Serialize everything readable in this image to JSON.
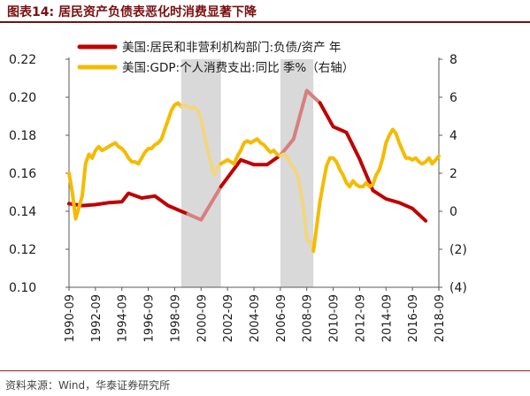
{
  "figure": {
    "title": "图表14:  居民资产负债表恶化时消费显著下降",
    "source": "资料来源：Wind，华泰证券研究所"
  },
  "colors": {
    "series_debt": "#c00000",
    "series_debt_shaded": "#d77f7f",
    "series_consumption": "#f5bb00",
    "series_consumption_shaded": "#f2d680",
    "recession_band": "#d9d9d9",
    "title": "#7a0f0f"
  },
  "chart_data": {
    "type": "line",
    "title": "",
    "xlabel": "",
    "ylabel": "",
    "legend_position": "top",
    "grid": false,
    "x_range": [
      "1990-09",
      "2018-09"
    ],
    "x_tick_labels": [
      "1990-09",
      "1992-09",
      "1994-09",
      "1996-09",
      "1998-09",
      "2000-09",
      "2002-09",
      "2004-09",
      "2006-09",
      "2008-09",
      "2010-09",
      "2012-09",
      "2014-09",
      "2016-09",
      "2018-09"
    ],
    "y_left": {
      "min": 0.1,
      "max": 0.22,
      "tick_labels": [
        "0.10",
        "0.12",
        "0.14",
        "0.16",
        "0.18",
        "0.20",
        "0.22"
      ]
    },
    "y_right": {
      "min": -4,
      "max": 8,
      "tick_labels": [
        "(4)",
        "(2)",
        "0",
        "2",
        "4",
        "6",
        "8"
      ]
    },
    "shaded_periods": [
      {
        "start": "1999-03",
        "end": "2002-03"
      },
      {
        "start": "2006-09",
        "end": "2009-03"
      }
    ],
    "series": [
      {
        "name": "美国:居民和非营利机构部门:负债/资产  年",
        "axis": "left",
        "points": [
          [
            "1990-09",
            0.144
          ],
          [
            "1991-09",
            0.143
          ],
          [
            "1992-09",
            0.1435
          ],
          [
            "1993-09",
            0.1445
          ],
          [
            "1994-09",
            0.145
          ],
          [
            "1995-03",
            0.1495
          ],
          [
            "1996-03",
            0.147
          ],
          [
            "1997-03",
            0.148
          ],
          [
            "1998-03",
            0.143
          ],
          [
            "1999-09",
            0.1385
          ],
          [
            "2000-09",
            0.1355
          ],
          [
            "2002-03",
            0.153
          ],
          [
            "2003-09",
            0.167
          ],
          [
            "2004-09",
            0.1645
          ],
          [
            "2005-09",
            0.1645
          ],
          [
            "2006-09",
            0.1695
          ],
          [
            "2007-09",
            0.178
          ],
          [
            "2008-09",
            0.2035
          ],
          [
            "2009-09",
            0.197
          ],
          [
            "2010-09",
            0.1845
          ],
          [
            "2011-09",
            0.1815
          ],
          [
            "2012-09",
            0.1675
          ],
          [
            "2013-09",
            0.151
          ],
          [
            "2014-09",
            0.1465
          ],
          [
            "2015-09",
            0.1445
          ],
          [
            "2016-09",
            0.1415
          ],
          [
            "2017-09",
            0.135
          ]
        ]
      },
      {
        "name": "美国:GDP:个人消费支出:同比  季%（右轴）",
        "axis": "right",
        "points": [
          [
            "1990-09",
            2.0
          ],
          [
            "1990-12",
            1.0
          ],
          [
            "1991-03",
            -0.4
          ],
          [
            "1991-06",
            0.2
          ],
          [
            "1991-09",
            0.8
          ],
          [
            "1991-12",
            2.5
          ],
          [
            "1992-03",
            3.0
          ],
          [
            "1992-06",
            2.8
          ],
          [
            "1992-09",
            3.2
          ],
          [
            "1992-12",
            3.4
          ],
          [
            "1993-03",
            3.2
          ],
          [
            "1993-06",
            3.3
          ],
          [
            "1993-09",
            3.4
          ],
          [
            "1993-12",
            3.5
          ],
          [
            "1994-03",
            3.6
          ],
          [
            "1994-06",
            3.4
          ],
          [
            "1994-09",
            3.3
          ],
          [
            "1994-12",
            3.1
          ],
          [
            "1995-03",
            2.8
          ],
          [
            "1995-06",
            2.6
          ],
          [
            "1995-09",
            2.6
          ],
          [
            "1995-12",
            2.5
          ],
          [
            "1996-03",
            2.8
          ],
          [
            "1996-06",
            3.1
          ],
          [
            "1996-09",
            3.3
          ],
          [
            "1996-12",
            3.3
          ],
          [
            "1997-03",
            3.5
          ],
          [
            "1997-06",
            3.6
          ],
          [
            "1997-09",
            3.8
          ],
          [
            "1997-12",
            4.3
          ],
          [
            "1998-03",
            4.8
          ],
          [
            "1998-06",
            5.3
          ],
          [
            "1998-09",
            5.6
          ],
          [
            "1998-12",
            5.7
          ],
          [
            "1999-03",
            5.5
          ],
          [
            "1999-06",
            5.6
          ],
          [
            "1999-09",
            5.5
          ],
          [
            "1999-12",
            5.4
          ],
          [
            "2000-03",
            5.5
          ],
          [
            "2000-06",
            5.3
          ],
          [
            "2000-09",
            4.8
          ],
          [
            "2000-12",
            4.0
          ],
          [
            "2001-03",
            3.2
          ],
          [
            "2001-06",
            2.5
          ],
          [
            "2001-09",
            1.9
          ],
          [
            "2001-12",
            2.3
          ],
          [
            "2002-03",
            2.5
          ],
          [
            "2002-06",
            2.6
          ],
          [
            "2002-09",
            2.7
          ],
          [
            "2002-12",
            2.6
          ],
          [
            "2003-03",
            2.5
          ],
          [
            "2003-06",
            2.9
          ],
          [
            "2003-09",
            3.2
          ],
          [
            "2003-12",
            3.6
          ],
          [
            "2004-03",
            3.7
          ],
          [
            "2004-06",
            3.6
          ],
          [
            "2004-09",
            3.7
          ],
          [
            "2004-12",
            3.8
          ],
          [
            "2005-03",
            3.6
          ],
          [
            "2005-06",
            3.5
          ],
          [
            "2005-09",
            3.3
          ],
          [
            "2005-12",
            3.1
          ],
          [
            "2006-03",
            3.2
          ],
          [
            "2006-06",
            3.0
          ],
          [
            "2006-09",
            2.9
          ],
          [
            "2006-12",
            3.0
          ],
          [
            "2007-03",
            2.9
          ],
          [
            "2007-06",
            2.5
          ],
          [
            "2007-09",
            2.3
          ],
          [
            "2007-12",
            2.0
          ],
          [
            "2008-03",
            1.2
          ],
          [
            "2008-06",
            0.2
          ],
          [
            "2008-09",
            -1.5
          ],
          [
            "2008-12",
            -1.6
          ],
          [
            "2009-03",
            -2.1
          ],
          [
            "2009-06",
            -0.8
          ],
          [
            "2009-09",
            0.5
          ],
          [
            "2009-12",
            1.5
          ],
          [
            "2010-03",
            2.4
          ],
          [
            "2010-06",
            2.8
          ],
          [
            "2010-09",
            2.8
          ],
          [
            "2010-12",
            2.6
          ],
          [
            "2011-03",
            2.2
          ],
          [
            "2011-06",
            1.9
          ],
          [
            "2011-09",
            1.5
          ],
          [
            "2011-12",
            1.3
          ],
          [
            "2012-03",
            1.6
          ],
          [
            "2012-06",
            1.4
          ],
          [
            "2012-09",
            1.3
          ],
          [
            "2012-12",
            1.3
          ],
          [
            "2013-03",
            1.5
          ],
          [
            "2013-06",
            1.3
          ],
          [
            "2013-09",
            1.4
          ],
          [
            "2013-12",
            1.9
          ],
          [
            "2014-03",
            2.2
          ],
          [
            "2014-06",
            2.8
          ],
          [
            "2014-09",
            3.6
          ],
          [
            "2014-12",
            4.0
          ],
          [
            "2015-03",
            4.3
          ],
          [
            "2015-06",
            4.1
          ],
          [
            "2015-09",
            3.6
          ],
          [
            "2015-12",
            3.2
          ],
          [
            "2016-03",
            2.8
          ],
          [
            "2016-06",
            2.8
          ],
          [
            "2016-09",
            2.7
          ],
          [
            "2016-12",
            2.8
          ],
          [
            "2017-03",
            2.6
          ],
          [
            "2017-06",
            2.5
          ],
          [
            "2017-09",
            2.6
          ],
          [
            "2017-12",
            2.8
          ],
          [
            "2018-03",
            2.5
          ],
          [
            "2018-06",
            2.7
          ],
          [
            "2018-09",
            2.9
          ]
        ]
      }
    ]
  }
}
